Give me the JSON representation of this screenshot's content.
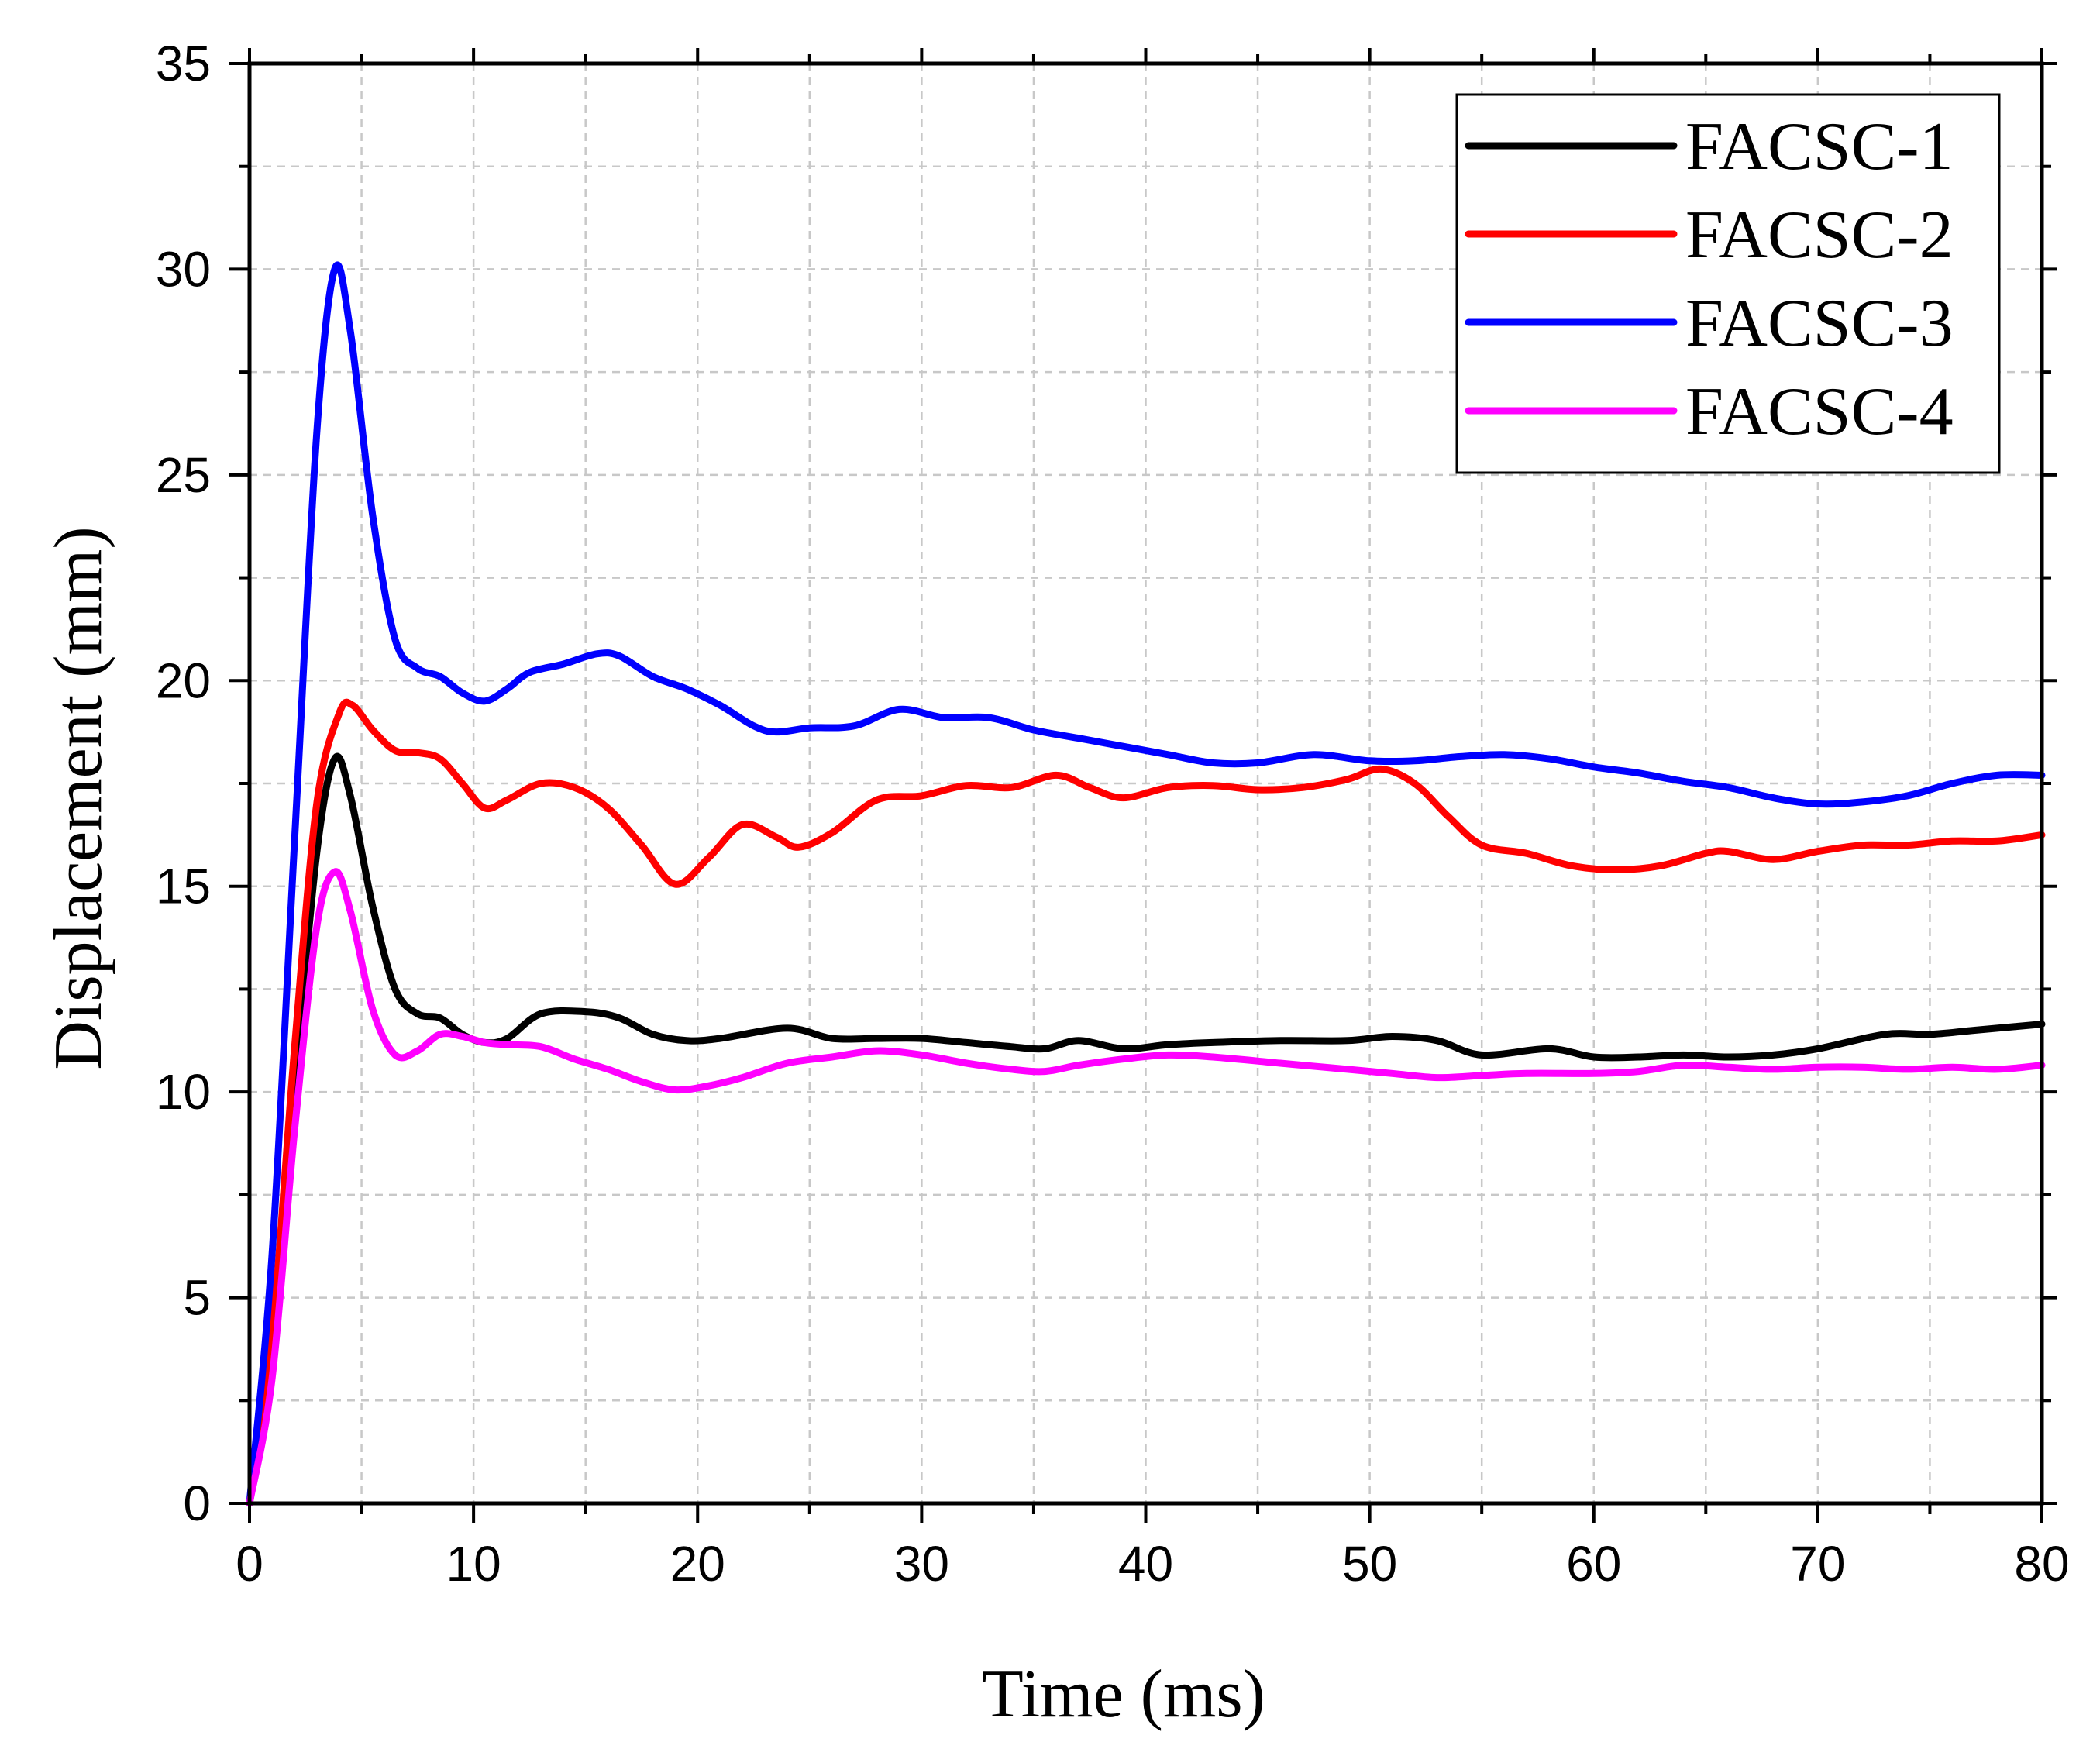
{
  "chart_data": {
    "type": "line",
    "title": "",
    "xlabel": "Time (ms)",
    "ylabel": "Displacement (mm)",
    "xlim": [
      0,
      80
    ],
    "ylim": [
      0,
      35
    ],
    "x_major_ticks": [
      0,
      10,
      20,
      30,
      40,
      50,
      60,
      70,
      80
    ],
    "x_tick_labels": [
      "0",
      "10",
      "20",
      "30",
      "40",
      "50",
      "60",
      "70",
      "80"
    ],
    "y_major_ticks": [
      0,
      5,
      10,
      15,
      20,
      25,
      30,
      35
    ],
    "y_tick_labels": [
      "0",
      "5",
      "10",
      "15",
      "20",
      "25",
      "30",
      "35"
    ],
    "grid": true,
    "legend_position": "top-right",
    "series": [
      {
        "name": "FACSC-1",
        "color": "#000000",
        "x": [
          0,
          1,
          2,
          3,
          3.8,
          4.5,
          5.5,
          6.5,
          7.5,
          8.5,
          9.5,
          10.5,
          11.5,
          13,
          15,
          16.5,
          18,
          19.5,
          21,
          24,
          26,
          28,
          30,
          32,
          34,
          35.5,
          37,
          39,
          41,
          43,
          46,
          49,
          51,
          53,
          55,
          58,
          60,
          62,
          64,
          66,
          68,
          70,
          73,
          75,
          77,
          80
        ],
        "y": [
          0,
          3.5,
          10,
          15.8,
          18.1,
          17.2,
          14.5,
          12.5,
          11.9,
          11.8,
          11.4,
          11.2,
          11.3,
          11.9,
          11.95,
          11.8,
          11.4,
          11.25,
          11.3,
          11.55,
          11.3,
          11.3,
          11.3,
          11.2,
          11.1,
          11.05,
          11.25,
          11.05,
          11.15,
          11.2,
          11.25,
          11.25,
          11.35,
          11.25,
          10.9,
          11.05,
          10.85,
          10.85,
          10.9,
          10.85,
          10.9,
          11.05,
          11.4,
          11.4,
          11.5,
          11.65
        ]
      },
      {
        "name": "FACSC-2",
        "color": "#ff0000",
        "x": [
          0,
          1,
          2,
          3,
          4,
          4.6,
          5.5,
          6.5,
          7.5,
          8.5,
          9.5,
          10.5,
          11.5,
          13,
          14.5,
          16,
          17.5,
          19,
          20.5,
          22,
          23.5,
          24.5,
          26,
          28,
          30,
          32,
          34,
          36,
          37.5,
          39,
          41,
          43,
          45,
          47,
          49,
          50.5,
          52,
          53.5,
          55,
          57,
          59,
          61,
          63,
          65,
          66,
          68,
          70,
          72,
          74,
          76,
          78,
          80
        ],
        "y": [
          0,
          4,
          11,
          17,
          19.2,
          19.4,
          18.8,
          18.3,
          18.25,
          18.1,
          17.5,
          16.9,
          17.1,
          17.5,
          17.4,
          16.9,
          16.0,
          15.05,
          15.7,
          16.5,
          16.2,
          15.95,
          16.3,
          17.1,
          17.2,
          17.45,
          17.4,
          17.7,
          17.4,
          17.15,
          17.4,
          17.45,
          17.35,
          17.4,
          17.6,
          17.85,
          17.5,
          16.7,
          16.0,
          15.8,
          15.5,
          15.4,
          15.5,
          15.8,
          15.85,
          15.65,
          15.85,
          16.0,
          16.0,
          16.1,
          16.1,
          16.25
        ]
      },
      {
        "name": "FACSC-3",
        "color": "#0000ff",
        "x": [
          0,
          1,
          2,
          3,
          3.8,
          4.5,
          5.5,
          6.5,
          7.5,
          8.5,
          9.5,
          10.5,
          11.5,
          12.5,
          14,
          15.5,
          16.5,
          18,
          19.5,
          21,
          22.5,
          23.5,
          25,
          27,
          29,
          31,
          33,
          35,
          37,
          39,
          41,
          43,
          45,
          47.5,
          50,
          52,
          54,
          56,
          58,
          60,
          62,
          64,
          66,
          68,
          70,
          72,
          74,
          76,
          78,
          80
        ],
        "y": [
          0,
          6,
          16,
          26,
          30.0,
          28.5,
          24.0,
          21.0,
          20.3,
          20.1,
          19.7,
          19.5,
          19.8,
          20.2,
          20.4,
          20.65,
          20.6,
          20.1,
          19.8,
          19.4,
          18.9,
          18.75,
          18.85,
          18.9,
          19.3,
          19.1,
          19.1,
          18.8,
          18.6,
          18.4,
          18.2,
          18.0,
          18.0,
          18.2,
          18.05,
          18.05,
          18.15,
          18.2,
          18.1,
          17.9,
          17.75,
          17.55,
          17.4,
          17.15,
          17.0,
          17.05,
          17.2,
          17.5,
          17.7,
          17.7
        ]
      },
      {
        "name": "FACSC-4",
        "color": "#ff00ff",
        "x": [
          0,
          1,
          2,
          3,
          3.8,
          4.5,
          5.5,
          6.5,
          7.5,
          8.5,
          9.5,
          10.5,
          11.5,
          13,
          14.5,
          16,
          17.5,
          19,
          20.5,
          22,
          24,
          26,
          28,
          30,
          32,
          34,
          35.5,
          37,
          39,
          41,
          43,
          46,
          49,
          51,
          53,
          55,
          57,
          60,
          62,
          64,
          66,
          68,
          70,
          72,
          74,
          76,
          78,
          80
        ],
        "y": [
          0,
          3,
          9,
          14,
          15.35,
          14.4,
          12.0,
          10.9,
          11.0,
          11.4,
          11.35,
          11.2,
          11.15,
          11.1,
          10.8,
          10.55,
          10.25,
          10.05,
          10.15,
          10.35,
          10.7,
          10.85,
          11.0,
          10.9,
          10.7,
          10.55,
          10.5,
          10.65,
          10.8,
          10.9,
          10.85,
          10.7,
          10.55,
          10.45,
          10.35,
          10.4,
          10.45,
          10.45,
          10.5,
          10.65,
          10.6,
          10.55,
          10.6,
          10.6,
          10.55,
          10.6,
          10.55,
          10.65
        ]
      }
    ]
  }
}
